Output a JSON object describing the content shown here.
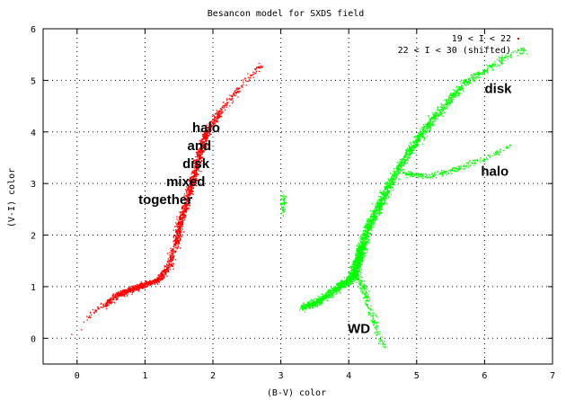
{
  "chart_data": {
    "type": "scatter",
    "title": "Besancon model for SXDS field",
    "xlabel": "(B-V) color",
    "ylabel": "(V-I) color",
    "xlim": [
      -0.5,
      7
    ],
    "ylim": [
      -0.5,
      6
    ],
    "x_ticks": [
      "0",
      "1",
      "2",
      "3",
      "4",
      "5",
      "6",
      "7"
    ],
    "y_ticks": [
      "0",
      "1",
      "2",
      "3",
      "4",
      "5",
      "6"
    ],
    "grid": true,
    "legend_position": "top-right",
    "series": [
      {
        "name": "19 < I < 22",
        "color": "#ff0000",
        "marker": "dot",
        "track": [
          [
            -0.05,
            0.05
          ],
          [
            0.2,
            0.5
          ],
          [
            0.4,
            0.65
          ],
          [
            0.6,
            0.85
          ],
          [
            0.8,
            0.95
          ],
          [
            1.0,
            1.05
          ],
          [
            1.2,
            1.15
          ],
          [
            1.35,
            1.4
          ],
          [
            1.45,
            1.85
          ],
          [
            1.5,
            2.2
          ],
          [
            1.6,
            2.6
          ],
          [
            1.7,
            3.1
          ],
          [
            1.8,
            3.6
          ],
          [
            1.9,
            4.0
          ],
          [
            2.1,
            4.4
          ],
          [
            2.4,
            4.9
          ],
          [
            2.7,
            5.3
          ]
        ],
        "spread": 0.06,
        "density": [
          2,
          4,
          18,
          28,
          26,
          22,
          20,
          18,
          26,
          30,
          34,
          34,
          30,
          22,
          14,
          8,
          3
        ]
      },
      {
        "name": "22 < I < 30 (shifted)",
        "color": "#00ff00",
        "marker": "dot",
        "track": [
          [
            3.3,
            0.6
          ],
          [
            3.5,
            0.7
          ],
          [
            3.7,
            0.85
          ],
          [
            3.9,
            1.05
          ],
          [
            4.05,
            1.2
          ],
          [
            4.1,
            1.4
          ],
          [
            4.15,
            1.6
          ],
          [
            4.2,
            1.85
          ],
          [
            4.3,
            2.2
          ],
          [
            4.45,
            2.6
          ],
          [
            4.6,
            3.0
          ],
          [
            4.8,
            3.45
          ],
          [
            5.0,
            3.85
          ],
          [
            5.2,
            4.2
          ],
          [
            5.45,
            4.6
          ],
          [
            5.7,
            4.95
          ],
          [
            6.0,
            5.2
          ],
          [
            6.3,
            5.45
          ],
          [
            6.6,
            5.6
          ]
        ],
        "spread": 0.07,
        "density": [
          26,
          30,
          32,
          34,
          36,
          38,
          34,
          34,
          38,
          36,
          30,
          28,
          26,
          24,
          20,
          16,
          10,
          6,
          3
        ],
        "branches": [
          {
            "label": "WD",
            "track": [
              [
                4.1,
                1.3
              ],
              [
                4.2,
                1.0
              ],
              [
                4.3,
                0.6
              ],
              [
                4.4,
                0.2
              ],
              [
                4.5,
                -0.15
              ]
            ],
            "density": [
              10,
              10,
              8,
              6,
              4
            ]
          },
          {
            "label": "halo",
            "track": [
              [
                4.8,
                3.2
              ],
              [
                5.2,
                3.15
              ],
              [
                5.6,
                3.3
              ],
              [
                6.0,
                3.5
              ],
              [
                6.4,
                3.75
              ]
            ],
            "density": [
              14,
              12,
              10,
              6,
              3
            ]
          },
          {
            "label": "",
            "track": [
              [
                3.0,
                2.4
              ],
              [
                3.02,
                2.6
              ],
              [
                3.03,
                2.8
              ]
            ],
            "density": [
              4,
              4,
              4
            ]
          }
        ]
      }
    ],
    "annotations": [
      {
        "text": "halo",
        "x": 1.9,
        "y": 4.0
      },
      {
        "text": "and",
        "x": 1.8,
        "y": 3.65
      },
      {
        "text": "disk",
        "x": 1.75,
        "y": 3.3
      },
      {
        "text": "mixed",
        "x": 1.6,
        "y": 2.95
      },
      {
        "text": "together",
        "x": 1.3,
        "y": 2.6
      },
      {
        "text": "disk",
        "x": 6.2,
        "y": 4.75
      },
      {
        "text": "halo",
        "x": 6.15,
        "y": 3.15
      },
      {
        "text": "WD",
        "x": 4.15,
        "y": 0.1
      }
    ]
  }
}
